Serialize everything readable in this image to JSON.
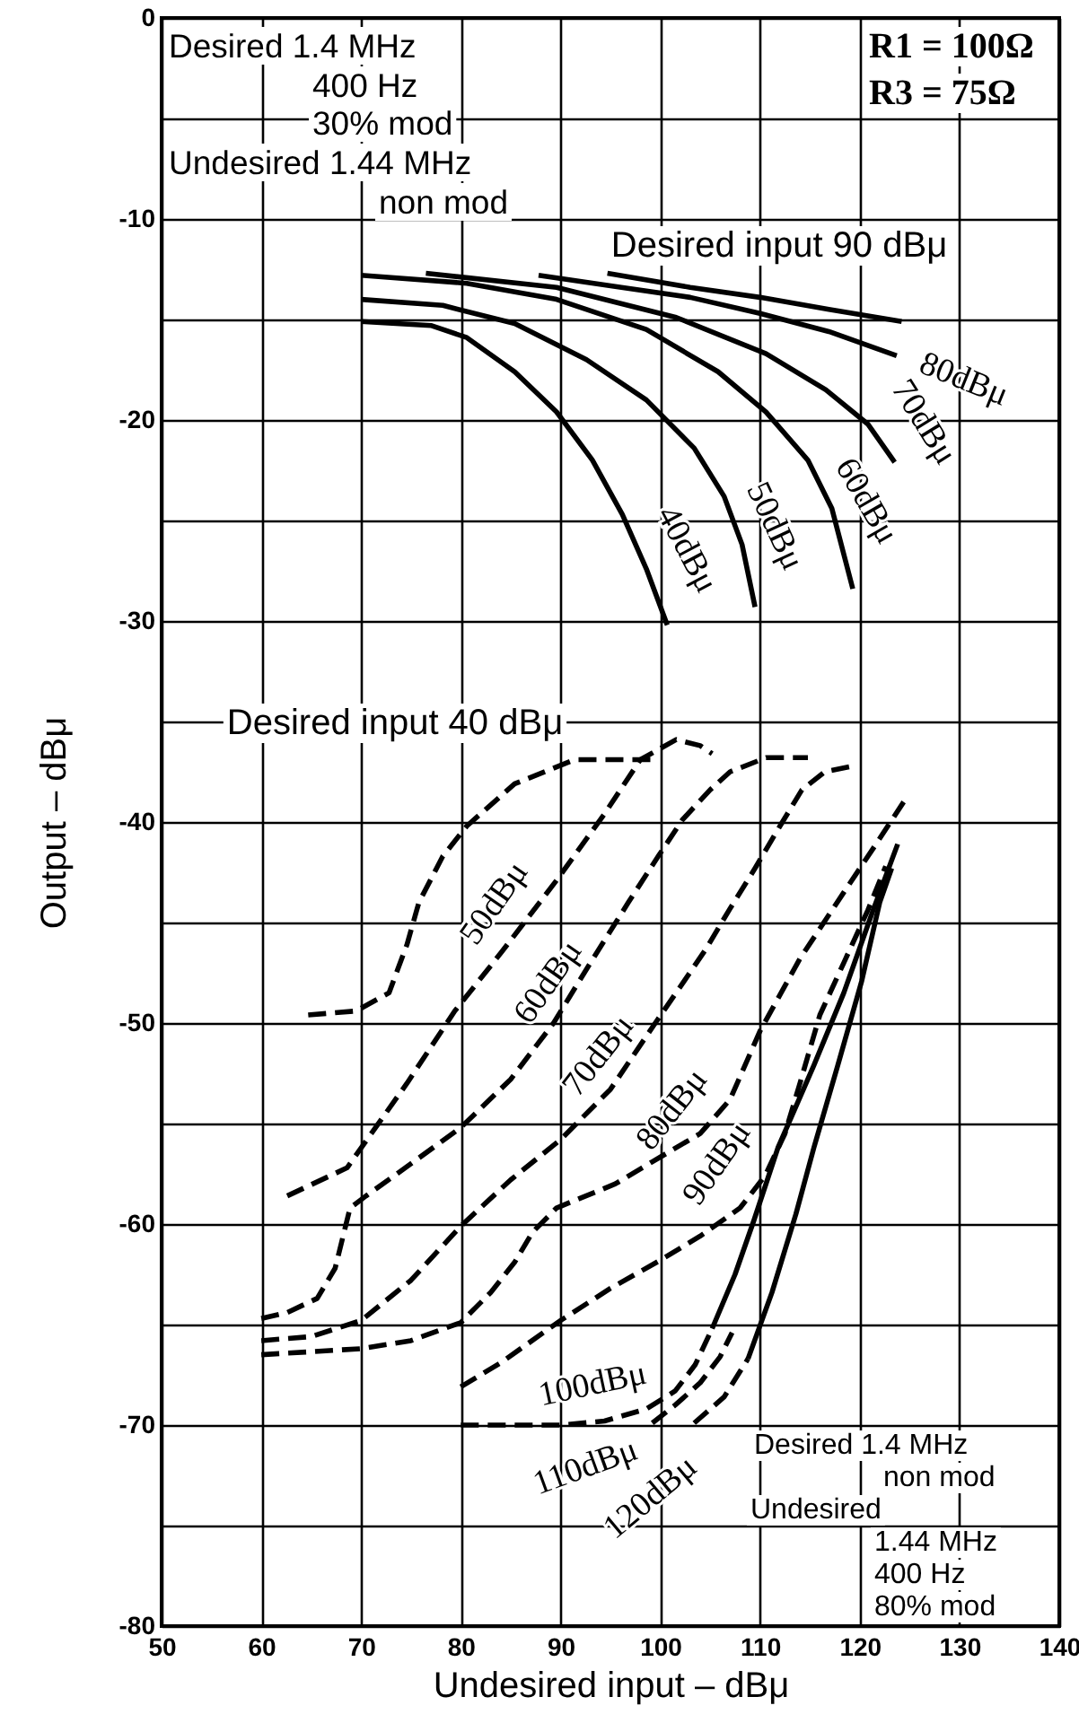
{
  "chart_data": {
    "type": "line",
    "xlabel": "Undesired input – dBμ",
    "ylabel": "Output – dBμ",
    "xlim": [
      50,
      140
    ],
    "ylim": [
      -80,
      0
    ],
    "xticks": [
      50,
      60,
      70,
      80,
      90,
      100,
      110,
      120,
      130,
      140
    ],
    "yticks": [
      0,
      {
        "value": -5,
        "label": null
      },
      -10,
      {
        "value": -15,
        "label": null
      },
      -20,
      {
        "value": -25,
        "label": null
      },
      -30,
      {
        "value": -35,
        "label": null
      },
      -40,
      {
        "value": -45,
        "label": null
      },
      -50,
      {
        "value": -55,
        "label": null
      },
      -60,
      {
        "value": -65,
        "label": null
      },
      -70,
      {
        "value": -75,
        "label": null
      },
      -80
    ],
    "grid": true,
    "annotations": [
      "Desired 1.4 MHz",
      "400 Hz",
      "30% mod",
      "Undesired 1.44 MHz",
      "non mod",
      "R1 = 100Ω",
      "R3 = 75Ω",
      "Desired input 90 dBμ",
      "Desired input 40 dBμ",
      "Desired 1.4 MHz",
      "non mod",
      "Undesired",
      "1.44 MHz",
      "400 Hz",
      "80% mod"
    ],
    "series": [
      {
        "name": "40dBμ",
        "color": "#000000",
        "line_style": "solid",
        "x": [
          70,
          77,
          80.6,
          85.4,
          89.6,
          93.2,
          96.2,
          98.6,
          100.7
        ],
        "values": [
          -15.1,
          -15.3,
          -15.9,
          -17.6,
          -19.6,
          -22.0,
          -24.7,
          -27.4,
          -30.2
        ]
      },
      {
        "name": "50dBμ",
        "color": "#000000",
        "line_style": "solid",
        "x": [
          70,
          78.2,
          85.4,
          92.6,
          98.6,
          103.4,
          106.4,
          108.2,
          109.5
        ],
        "values": [
          -14.0,
          -14.3,
          -15.2,
          -17.0,
          -19.0,
          -21.4,
          -23.8,
          -26.2,
          -29.3
        ]
      },
      {
        "name": "60dBμ",
        "color": "#000000",
        "line_style": "solid",
        "x": [
          70,
          80.6,
          89.6,
          98.6,
          105.8,
          110.6,
          114.8,
          117.2,
          119.3
        ],
        "values": [
          -12.8,
          -13.2,
          -14.0,
          -15.5,
          -17.6,
          -19.6,
          -22.0,
          -24.4,
          -28.4
        ]
      },
      {
        "name": "70dBμ",
        "color": "#000000",
        "line_style": "solid",
        "x": [
          76.5,
          89.6,
          101.6,
          110.6,
          116.6,
          120.8,
          123.5
        ],
        "values": [
          -12.7,
          -13.4,
          -14.9,
          -16.7,
          -18.5,
          -20.2,
          -22.1
        ]
      },
      {
        "name": "80dBμ",
        "color": "#000000",
        "line_style": "solid",
        "x": [
          87.8,
          96.1,
          103,
          110,
          116.9,
          123.7
        ],
        "values": [
          -12.8,
          -13.4,
          -13.9,
          -14.7,
          -15.6,
          -16.8
        ]
      },
      {
        "color": "#000000",
        "line_style": "solid",
        "x": [
          94.7,
          103,
          110,
          116.9,
          124.2
        ],
        "values": [
          -12.7,
          -13.4,
          -13.9,
          -14.5,
          -15.1
        ]
      },
      {
        "color": "#000000",
        "line_style": "dashed",
        "x": [
          64.7,
          69.5,
          72.8,
          74.6,
          75.8,
          78.2,
          80.6,
          85.4,
          91.4,
          99.9
        ],
        "values": [
          -49.6,
          -49.4,
          -48.5,
          -46.1,
          -44.0,
          -41.7,
          -40.2,
          -38.1,
          -36.9,
          -36.9
        ]
      },
      {
        "name": "50dBμ",
        "color": "#000000",
        "line_style": "dashed",
        "x": [
          62.6,
          68.6,
          74.6,
          79.4,
          84.2,
          89.6,
          94.4,
          98.0,
          101.6,
          104.0,
          105.2
        ],
        "values": [
          -58.6,
          -57.2,
          -53.0,
          -49.4,
          -46.4,
          -42.9,
          -39.6,
          -36.9,
          -35.9,
          -36.2,
          -36.6
        ]
      },
      {
        "name": "60dBμ",
        "color": "#000000",
        "line_style": "dashed",
        "x": [
          60,
          62.6,
          65.6,
          67.4,
          68.3,
          68.9,
          70.5,
          75,
          80,
          85,
          89.3,
          93,
          96.8,
          99.8,
          102.2,
          105,
          107,
          110.6,
          114.8
        ],
        "values": [
          -64.7,
          -64.4,
          -63.7,
          -62.2,
          -60.4,
          -59.2,
          -58.6,
          -57.0,
          -55.2,
          -52.8,
          -50.0,
          -47.0,
          -44.0,
          -41.7,
          -39.9,
          -38.4,
          -37.5,
          -36.8,
          -36.8
        ]
      },
      {
        "name": "70dBμ",
        "color": "#000000",
        "line_style": "dashed",
        "x": [
          60,
          65,
          70,
          75,
          80,
          85,
          90,
          95,
          99.5,
          102,
          104.6,
          107,
          109.5,
          112,
          114.2,
          116.5,
          119.5
        ],
        "values": [
          -65.8,
          -65.6,
          -64.8,
          -62.8,
          -60.1,
          -57.8,
          -55.8,
          -53.3,
          -50.0,
          -48.2,
          -46.3,
          -44.3,
          -42.3,
          -40.2,
          -38.4,
          -37.5,
          -37.2
        ]
      },
      {
        "name": "80dBμ",
        "color": "#000000",
        "line_style": "dashed",
        "x": [
          60,
          70,
          75,
          80,
          83,
          85.4,
          87.2,
          89.6,
          95.5,
          99.2,
          104,
          107,
          110,
          114,
          118.4,
          121.5,
          124.4
        ],
        "values": [
          -66.5,
          -66.2,
          -65.8,
          -64.9,
          -63.4,
          -61.9,
          -60.4,
          -59.2,
          -58.0,
          -56.9,
          -55.5,
          -53.8,
          -50.4,
          -46.8,
          -43.5,
          -41.2,
          -39.0
        ]
      },
      {
        "name": "90dBμ",
        "color": "#000000",
        "line_style": "dashed",
        "x": [
          80,
          84,
          90,
          95,
          100,
          104,
          108,
          110.5,
          112.5,
          114,
          116,
          118.4,
          120.8,
          122.6
        ],
        "values": [
          -68.1,
          -66.9,
          -64.8,
          -63.2,
          -61.8,
          -60.6,
          -59.2,
          -57.6,
          -55.5,
          -53.0,
          -49.6,
          -47.0,
          -44.4,
          -42.2
        ]
      },
      {
        "name": "100dBμ",
        "color": "#000000",
        "line_style": "dashed",
        "x": [
          80,
          85,
          90,
          94.4,
          98.6,
          101.5,
          103.5,
          105.2
        ],
        "values": [
          -70.0,
          -70.0,
          -70.0,
          -69.8,
          -69.2,
          -68.3,
          -67.0,
          -65.2
        ]
      },
      {
        "name": "110dBμ",
        "color": "#000000",
        "line_style": "dashed",
        "x": [
          99.2,
          101.5,
          104,
          106,
          107.2
        ],
        "values": [
          -69.9,
          -69.0,
          -67.9,
          -66.6,
          -65.4
        ]
      },
      {
        "name": "120dBμ",
        "color": "#000000",
        "line_style": "dashed",
        "x": [
          103.4,
          106.4,
          108.8
        ],
        "values": [
          -69.9,
          -68.6,
          -66.7
        ]
      },
      {
        "color": "#000000",
        "line_style": "solid",
        "x": [
          105.2,
          107.5,
          109.4,
          111.8,
          115.4,
          118.4,
          121.4,
          123.8
        ],
        "values": [
          -65.2,
          -62.5,
          -59.8,
          -56.2,
          -52.1,
          -48.5,
          -44.3,
          -41.1
        ]
      },
      {
        "color": "#000000",
        "line_style": "solid",
        "x": [
          108.8,
          111.2,
          113.6,
          115.4,
          117.8,
          120.2,
          122,
          123.2
        ],
        "values": [
          -66.7,
          -63.4,
          -59.5,
          -56.2,
          -52.1,
          -47.9,
          -44.0,
          -42.3
        ]
      }
    ]
  }
}
